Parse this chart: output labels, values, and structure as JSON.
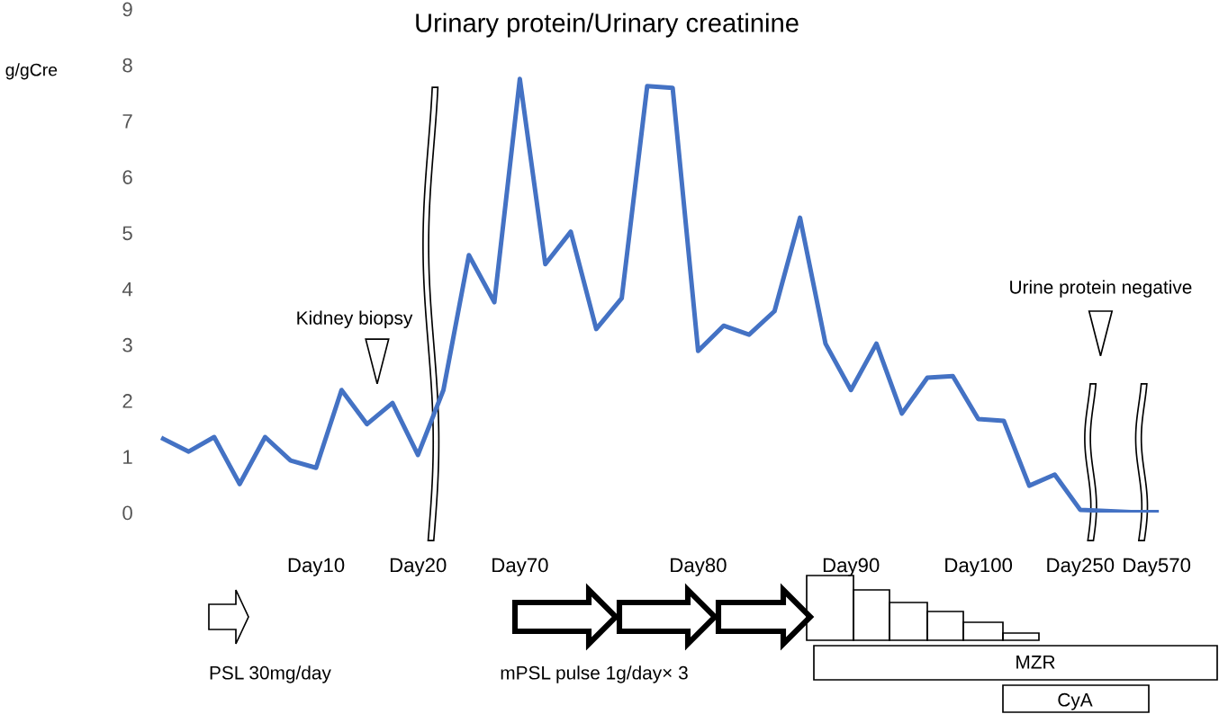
{
  "chart_data": {
    "type": "line",
    "title": "Urinary protein/Urinary creatinine",
    "ylabel": "g/gCre",
    "categories": [
      null,
      null,
      null,
      null,
      null,
      null,
      "Day10",
      null,
      null,
      null,
      "Day20",
      null,
      null,
      null,
      "Day70",
      null,
      null,
      null,
      null,
      null,
      null,
      "Day80",
      null,
      null,
      null,
      null,
      null,
      "Day90",
      null,
      null,
      null,
      null,
      "Day100",
      null,
      null,
      null,
      "Day250",
      null,
      null,
      "Day570"
    ],
    "series": [
      {
        "color": "#4472c4",
        "values": [
          1.32,
          1.09,
          1.35,
          0.51,
          1.35,
          0.93,
          0.8,
          2.19,
          1.58,
          1.96,
          1.03,
          2.19,
          4.6,
          3.76,
          7.75,
          4.44,
          5.02,
          3.28,
          3.83,
          7.62,
          7.59,
          2.89,
          3.34,
          3.18,
          3.6,
          5.27,
          3.02,
          2.19,
          3.02,
          1.77,
          2.41,
          2.44,
          1.67,
          1.64,
          0.48,
          0.68,
          0.05,
          0.03,
          0.01,
          0.01
        ]
      }
    ],
    "ylim": [
      0,
      9
    ],
    "yticks": [
      0,
      1,
      2,
      3,
      4,
      5,
      6,
      7,
      8,
      9
    ],
    "annotations": [
      "Kidney biopsy",
      "Urine protein negative",
      "PSL 30mg/day",
      "mPSL pulse 1g/day× 3",
      "MZR",
      "CyA"
    ],
    "grid": false,
    "marker": "none",
    "line_style": "solid"
  }
}
